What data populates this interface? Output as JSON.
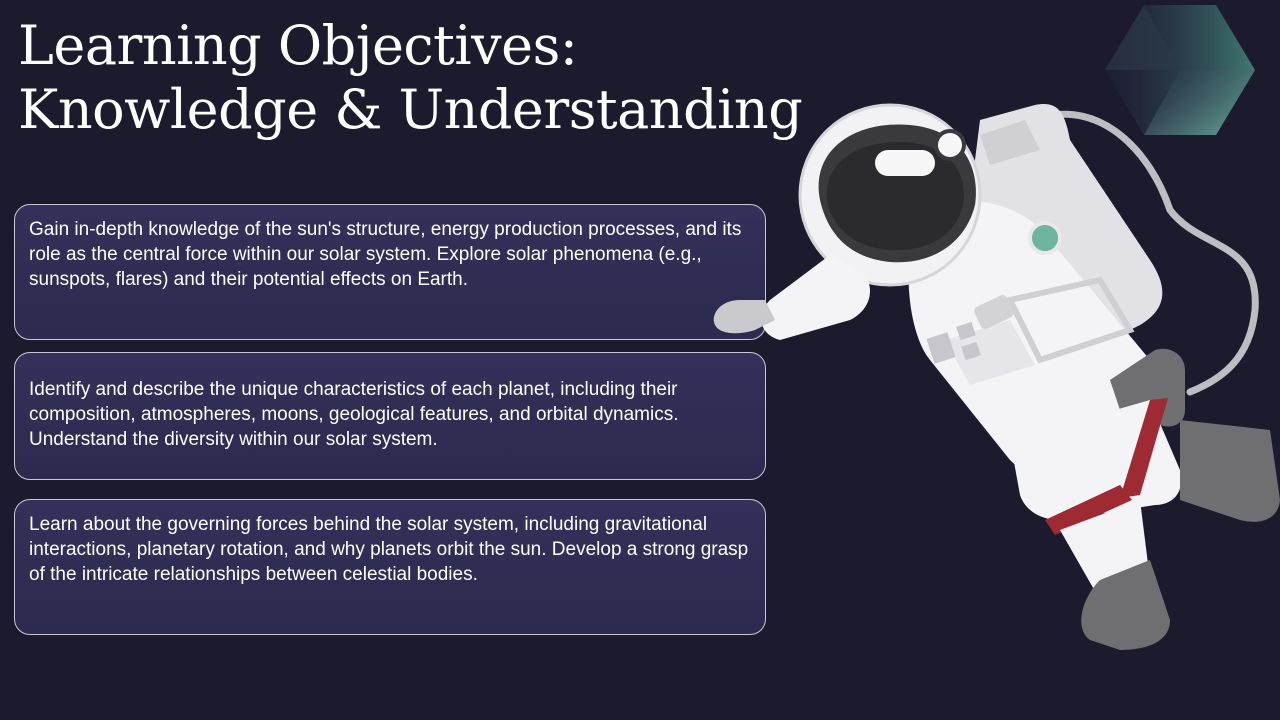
{
  "slide": {
    "title_lines": [
      "Learning Objectives:",
      "Knowledge & Understanding"
    ],
    "objectives": [
      {
        "text": "Gain in-depth knowledge of the sun's structure, energy production processes, and its role as the central force within our solar system. Explore solar phenomena (e.g., sunspots, flares) and their potential effects on Earth."
      },
      {
        "text": "Identify and describe the unique characteristics of each planet, including their composition, atmospheres, moons, geological features, and orbital dynamics. Understand the diversity within our solar system."
      },
      {
        "text": "Learn about the governing forces behind the solar system, including gravitational interactions, planetary rotation, and why planets orbit the sun. Develop a strong grasp of the intricate relationships between celestial bodies."
      }
    ]
  },
  "colors": {
    "background": "#1c1b2e",
    "card_fill": "#2f2c52",
    "card_border": "#c9c7d6",
    "accent_teal": "#6fb3a1",
    "suit_stripe": "#9e2a33"
  },
  "decor": {
    "illustration": "astronaut-illustration",
    "shape": "cube-icon"
  }
}
